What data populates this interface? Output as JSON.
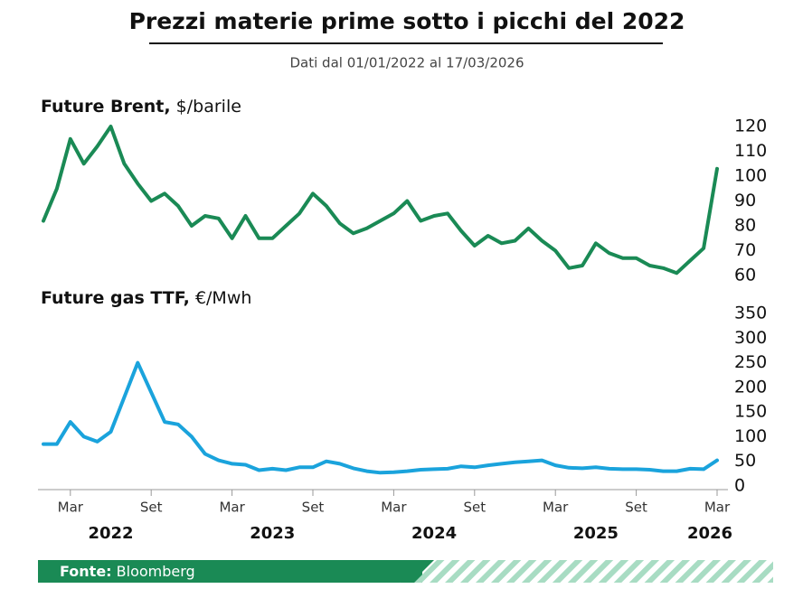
{
  "title": "Prezzi materie prime sotto i picchi del 2022",
  "subtitle": "Dati dal 01/01/2022 al 17/03/2026",
  "source_label": "Fonte:",
  "source": "Bloomberg",
  "chart_data": [
    {
      "type": "line",
      "label": "Future Brent,",
      "unit": "$/barile",
      "color": "#1a8a55",
      "xlim": [
        "2022-01",
        "2026-03"
      ],
      "x": [
        "2022-01",
        "2022-02",
        "2022-03",
        "2022-04",
        "2022-05",
        "2022-06",
        "2022-07",
        "2022-08",
        "2022-09",
        "2022-10",
        "2022-11",
        "2022-12",
        "2023-01",
        "2023-02",
        "2023-03",
        "2023-04",
        "2023-05",
        "2023-06",
        "2023-07",
        "2023-08",
        "2023-09",
        "2023-10",
        "2023-11",
        "2023-12",
        "2024-01",
        "2024-02",
        "2024-03",
        "2024-04",
        "2024-05",
        "2024-06",
        "2024-07",
        "2024-08",
        "2024-09",
        "2024-10",
        "2024-11",
        "2024-12",
        "2025-01",
        "2025-02",
        "2025-03",
        "2025-04",
        "2025-05",
        "2025-06",
        "2025-07",
        "2025-08",
        "2025-09",
        "2025-10",
        "2025-11",
        "2025-12",
        "2026-01",
        "2026-02",
        "2026-03"
      ],
      "values": [
        82,
        95,
        115,
        105,
        112,
        120,
        105,
        97,
        90,
        93,
        88,
        80,
        84,
        83,
        75,
        84,
        75,
        75,
        80,
        85,
        93,
        88,
        81,
        77,
        79,
        82,
        85,
        90,
        82,
        84,
        85,
        78,
        72,
        76,
        73,
        74,
        79,
        74,
        70,
        63,
        64,
        73,
        69,
        67,
        67,
        64,
        63,
        61,
        66,
        71,
        103
      ],
      "ylim": [
        60,
        120
      ],
      "yticks": [
        60,
        70,
        80,
        90,
        100,
        110,
        120
      ]
    },
    {
      "type": "line",
      "label": "Future gas TTF,",
      "unit": "€/Mwh",
      "color": "#1aa3dc",
      "xlim": [
        "2022-01",
        "2026-03"
      ],
      "x": [
        "2022-01",
        "2022-02",
        "2022-03",
        "2022-04",
        "2022-05",
        "2022-06",
        "2022-07",
        "2022-08",
        "2022-09",
        "2022-10",
        "2022-11",
        "2022-12",
        "2023-01",
        "2023-02",
        "2023-03",
        "2023-04",
        "2023-05",
        "2023-06",
        "2023-07",
        "2023-08",
        "2023-09",
        "2023-10",
        "2023-11",
        "2023-12",
        "2024-01",
        "2024-02",
        "2024-03",
        "2024-04",
        "2024-05",
        "2024-06",
        "2024-07",
        "2024-08",
        "2024-09",
        "2024-10",
        "2024-11",
        "2024-12",
        "2025-01",
        "2025-02",
        "2025-03",
        "2025-04",
        "2025-05",
        "2025-06",
        "2025-07",
        "2025-08",
        "2025-09",
        "2025-10",
        "2025-11",
        "2025-12",
        "2026-01",
        "2026-02",
        "2026-03"
      ],
      "values": [
        85,
        85,
        130,
        100,
        90,
        110,
        180,
        250,
        190,
        130,
        125,
        100,
        65,
        52,
        45,
        43,
        32,
        35,
        32,
        38,
        38,
        50,
        45,
        36,
        30,
        27,
        28,
        30,
        33,
        34,
        35,
        40,
        38,
        42,
        45,
        48,
        50,
        52,
        42,
        37,
        36,
        38,
        35,
        34,
        34,
        33,
        30,
        30,
        35,
        34,
        52
      ],
      "ylim": [
        0,
        350
      ],
      "yticks": [
        0,
        50,
        100,
        150,
        200,
        250,
        300,
        350
      ],
      "xticks": [
        {
          "value": "2022-03",
          "label": "Mar"
        },
        {
          "value": "2022-09",
          "label": "Set"
        },
        {
          "value": "2023-03",
          "label": "Mar"
        },
        {
          "value": "2023-09",
          "label": "Set"
        },
        {
          "value": "2024-03",
          "label": "Mar"
        },
        {
          "value": "2024-09",
          "label": "Set"
        },
        {
          "value": "2025-03",
          "label": "Mar"
        },
        {
          "value": "2025-09",
          "label": "Set"
        },
        {
          "value": "2026-03",
          "label": "Mar"
        }
      ],
      "years": [
        "2022",
        "2023",
        "2024",
        "2025",
        "2026"
      ]
    }
  ]
}
